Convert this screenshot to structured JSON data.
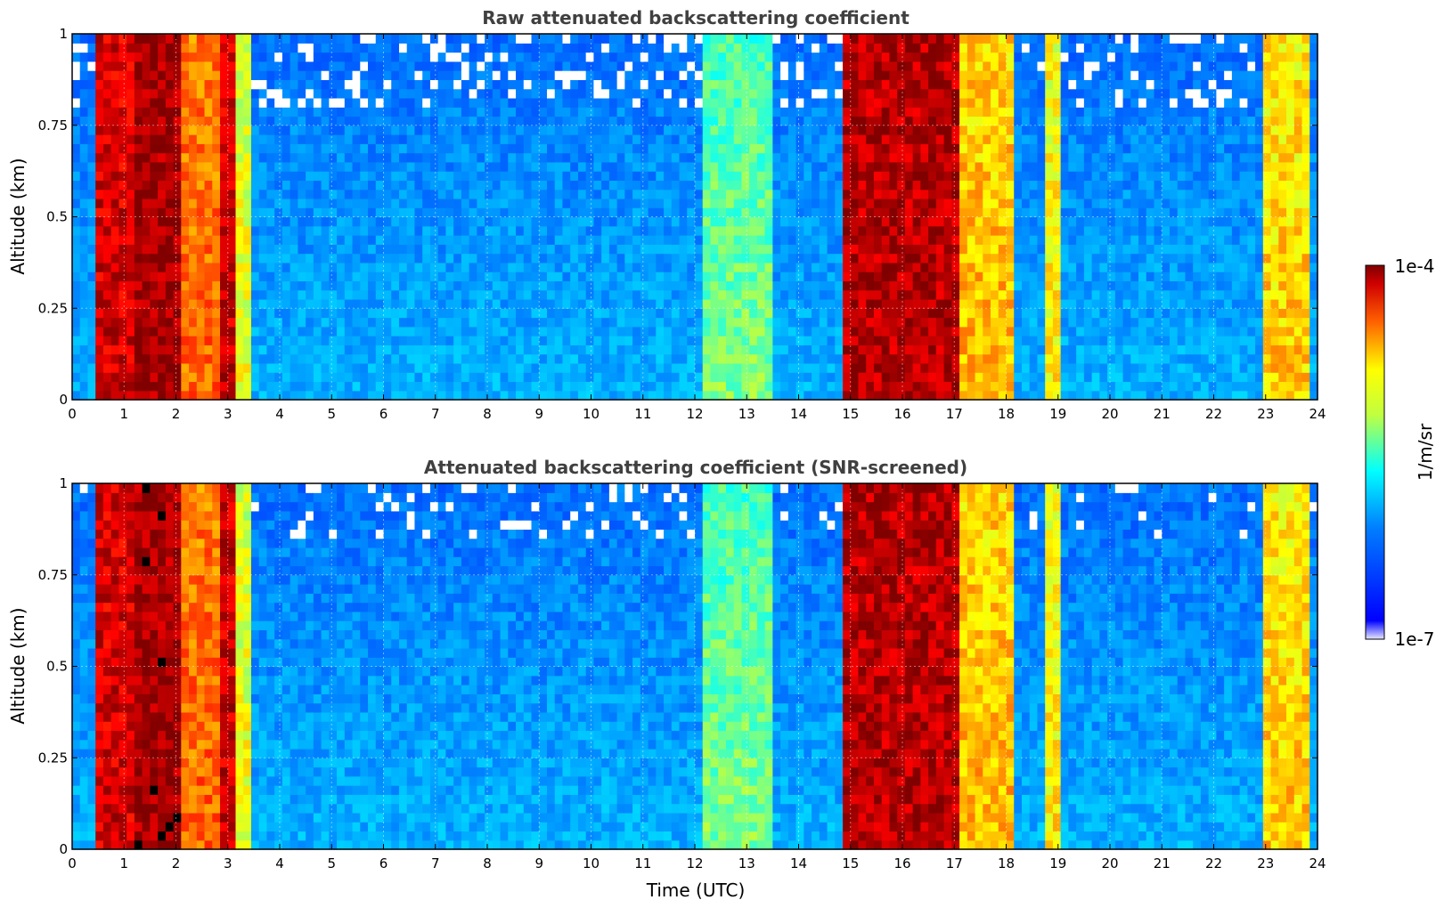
{
  "chart_data": [
    {
      "type": "heatmap",
      "title": "Raw attenuated backscattering coefficient",
      "xlabel": "",
      "ylabel": "Altitude (km)",
      "xlim": [
        0,
        24
      ],
      "ylim": [
        0,
        1
      ],
      "x_ticks": [
        "0",
        "1",
        "2",
        "3",
        "4",
        "5",
        "6",
        "7",
        "8",
        "9",
        "10",
        "11",
        "12",
        "13",
        "14",
        "15",
        "16",
        "17",
        "18",
        "19",
        "20",
        "21",
        "22",
        "23",
        "24"
      ],
      "y_ticks": [
        "0",
        "0.25",
        "0.5",
        "0.75",
        "1"
      ],
      "grid": true,
      "screened": false,
      "cloud_bands": [
        {
          "start": 0.45,
          "end": 1.25,
          "level": 0.92
        },
        {
          "start": 1.25,
          "end": 2.05,
          "level": 0.97
        },
        {
          "start": 2.05,
          "end": 2.9,
          "level": 0.78
        },
        {
          "start": 2.9,
          "end": 3.15,
          "level": 0.93
        },
        {
          "start": 3.15,
          "end": 3.5,
          "level": 0.62
        },
        {
          "start": 12.2,
          "end": 13.5,
          "level": 0.5
        },
        {
          "start": 14.85,
          "end": 17.1,
          "level": 0.95
        },
        {
          "start": 17.1,
          "end": 18.15,
          "level": 0.7
        },
        {
          "start": 18.7,
          "end": 19.0,
          "level": 0.65
        },
        {
          "start": 22.9,
          "end": 23.8,
          "level": 0.68
        }
      ]
    },
    {
      "type": "heatmap",
      "title": "Attenuated backscattering coefficient (SNR-screened)",
      "xlabel": "Time (UTC)",
      "ylabel": "Altitude (km)",
      "xlim": [
        0,
        24
      ],
      "ylim": [
        0,
        1
      ],
      "x_ticks": [
        "0",
        "1",
        "2",
        "3",
        "4",
        "5",
        "6",
        "7",
        "8",
        "9",
        "10",
        "11",
        "12",
        "13",
        "14",
        "15",
        "16",
        "17",
        "18",
        "19",
        "20",
        "21",
        "22",
        "23",
        "24"
      ],
      "y_ticks": [
        "0",
        "0.25",
        "0.5",
        "0.75",
        "1"
      ],
      "grid": true,
      "screened": true,
      "cloud_bands": [
        {
          "start": 0.45,
          "end": 1.25,
          "level": 0.92
        },
        {
          "start": 1.25,
          "end": 2.05,
          "level": 0.97
        },
        {
          "start": 2.05,
          "end": 2.9,
          "level": 0.78
        },
        {
          "start": 2.9,
          "end": 3.15,
          "level": 0.93
        },
        {
          "start": 3.15,
          "end": 3.5,
          "level": 0.62
        },
        {
          "start": 12.2,
          "end": 13.5,
          "level": 0.5
        },
        {
          "start": 14.85,
          "end": 17.1,
          "level": 0.95
        },
        {
          "start": 17.1,
          "end": 18.15,
          "level": 0.7
        },
        {
          "start": 18.7,
          "end": 19.0,
          "level": 0.65
        },
        {
          "start": 22.9,
          "end": 23.8,
          "level": 0.68
        }
      ]
    }
  ],
  "colorbar": {
    "max_label": "1e-4",
    "min_label": "1e-7",
    "label": "1/m/sr",
    "colormap": "jet"
  }
}
